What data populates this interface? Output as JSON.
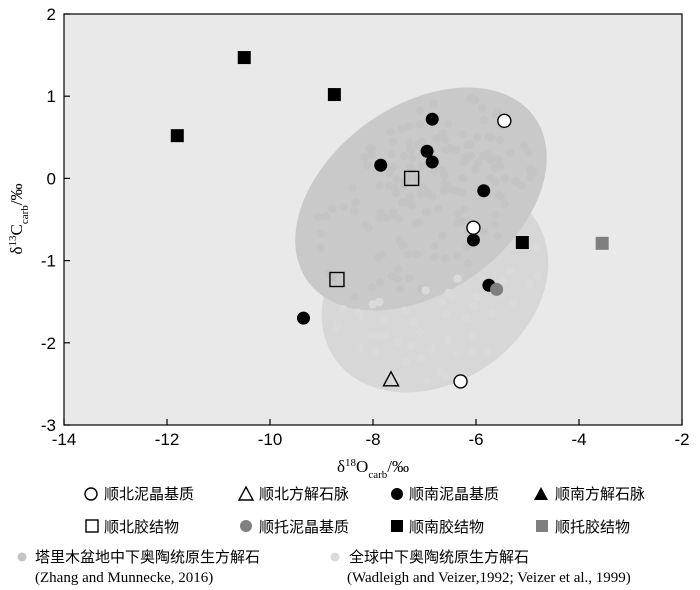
{
  "chart_data": {
    "type": "scatter",
    "xlim": [
      -14,
      -2
    ],
    "ylim": [
      -3,
      2
    ],
    "xticks": [
      -14,
      -12,
      -10,
      -8,
      -6,
      -4,
      -2
    ],
    "yticks": [
      2,
      1,
      0,
      -1,
      -2,
      -3
    ],
    "xlabel": {
      "delta": "δ",
      "sup": "18",
      "main": "O",
      "sub": "carb",
      "unit": "/‰"
    },
    "ylabel": {
      "delta": "δ",
      "sup": "13",
      "main": "C",
      "sub": "carb",
      "unit": "/‰"
    },
    "colors": {
      "plot_bg": "#e9e9e9",
      "global_ellipse": "#d7d7d7",
      "tarim_ellipse": "#c9c9c9",
      "tarim_points": "#c4c4c4",
      "global_points": "#dadada",
      "black": "#000000",
      "shuntuo_gray": "#7f7f7f"
    },
    "series": [
      {
        "name": "顺北泥晶基质",
        "marker": "circle-open",
        "points": [
          [
            -5.45,
            0.7
          ],
          [
            -6.05,
            -0.6
          ],
          [
            -6.3,
            -2.47
          ]
        ]
      },
      {
        "name": "顺北方解石脉",
        "marker": "triangle-open",
        "points": [
          [
            -7.65,
            -2.45
          ]
        ]
      },
      {
        "name": "顺南泥晶基质",
        "marker": "circle-filled",
        "points": [
          [
            -6.85,
            0.72
          ],
          [
            -6.95,
            0.33
          ],
          [
            -6.85,
            0.2
          ],
          [
            -7.85,
            0.16
          ],
          [
            -5.85,
            -0.15
          ],
          [
            -6.05,
            -0.75
          ],
          [
            -5.75,
            -1.3
          ],
          [
            -9.35,
            -1.7
          ]
        ]
      },
      {
        "name": "顺南方解石脉",
        "marker": "triangle-filled",
        "points": []
      },
      {
        "name": "顺北胶结物",
        "marker": "square-open",
        "points": [
          [
            -7.25,
            0.0
          ],
          [
            -8.7,
            -1.23
          ]
        ]
      },
      {
        "name": "顺托泥晶基质",
        "marker": "circle-gray",
        "points": [
          [
            -5.6,
            -1.35
          ]
        ]
      },
      {
        "name": "顺南胶结物",
        "marker": "square-filled",
        "points": [
          [
            -10.5,
            1.47
          ],
          [
            -8.75,
            1.02
          ],
          [
            -11.8,
            0.52
          ],
          [
            -5.1,
            -0.78
          ]
        ]
      },
      {
        "name": "顺托胶结物",
        "marker": "square-gray",
        "points": [
          [
            -3.55,
            -0.79
          ]
        ]
      }
    ],
    "reference": [
      {
        "name": "塔里木盆地中下奥陶统原生方解石",
        "source": "(Zhang and Munnecke, 2016)"
      },
      {
        "name": "全球中下奥陶统原生方解石",
        "source": "(Wadleigh and Veizer,1992; Veizer et al., 1999)"
      }
    ]
  }
}
